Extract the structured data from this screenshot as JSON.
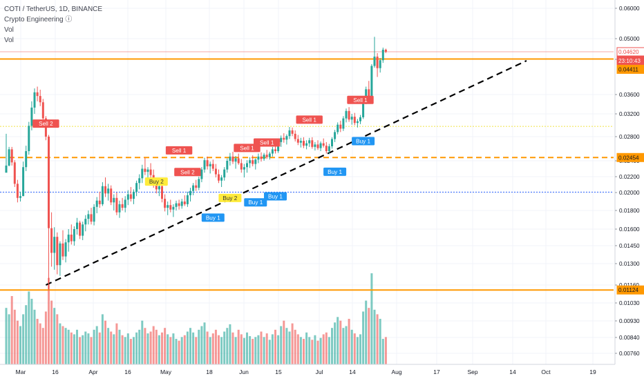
{
  "header": {
    "symbol_line": "COTI / TetherUS, 1D, BINANCE",
    "indicators": [
      "Crypto Engineering ⓘ",
      "Vol",
      "Vol"
    ]
  },
  "colors": {
    "up": "#26a69a",
    "down": "#ef5350",
    "orange": "#ff9800",
    "yellow": "#f0e442",
    "blue": "#2962ff",
    "sell_label": "#ef5350",
    "buy1_label": "#2196f3",
    "buy2_label": "#ffeb3b",
    "trend": "#000000"
  },
  "price_axis": {
    "ticks": [
      "0.06000",
      "0.05000",
      "0.04400",
      "0.03600",
      "0.03200",
      "0.02800",
      "0.02400",
      "0.02200",
      "0.02000",
      "0.01800",
      "0.01600",
      "0.01450",
      "0.01300",
      "0.01160",
      "0.01030",
      "0.00930",
      "0.00840",
      "0.00760"
    ]
  },
  "time_axis": {
    "labels": [
      "Mar",
      "16",
      "Apr",
      "16",
      "May",
      "18",
      "Jun",
      "15",
      "Jul",
      "14",
      "Aug",
      "17",
      "Sep",
      "14",
      "Oct",
      "19"
    ]
  },
  "badges": [
    {
      "text": "0.04620",
      "color": "#ef5350",
      "style": "outline"
    },
    {
      "text": "23:10:43",
      "color": "#ef5350",
      "style": "fill"
    },
    {
      "text": "0.04411",
      "color": "#ff9800",
      "style": "fill"
    },
    {
      "text": "0.02454",
      "color": "#ff9800",
      "style": "fill"
    },
    {
      "text": "0.01124",
      "color": "#ff9800",
      "style": "fill"
    }
  ],
  "chart_data": {
    "type": "candlestick",
    "series_note": "COTI/USDT daily OHLC, Feb 26 – Jul 22 (approx.)",
    "start_date": "2021-02-26",
    "ohlc": [
      [
        0.0225,
        0.0285,
        0.0228,
        0.0234
      ],
      [
        0.0234,
        0.0263,
        0.0233,
        0.0259
      ],
      [
        0.0259,
        0.0263,
        0.0234,
        0.0238
      ],
      [
        0.0238,
        0.0241,
        0.0207,
        0.0211
      ],
      [
        0.0211,
        0.0216,
        0.0189,
        0.0194
      ],
      [
        0.0194,
        0.0201,
        0.019,
        0.0196
      ],
      [
        0.0196,
        0.0239,
        0.0196,
        0.0232
      ],
      [
        0.0232,
        0.0265,
        0.0227,
        0.0256
      ],
      [
        0.0256,
        0.0306,
        0.025,
        0.0299
      ],
      [
        0.0299,
        0.0346,
        0.0291,
        0.0333
      ],
      [
        0.0333,
        0.0374,
        0.032,
        0.0365
      ],
      [
        0.0365,
        0.0378,
        0.0346,
        0.0357
      ],
      [
        0.0357,
        0.0371,
        0.0336,
        0.0344
      ],
      [
        0.0344,
        0.0351,
        0.0305,
        0.0312
      ],
      [
        0.0312,
        0.0316,
        0.0274,
        0.028
      ],
      [
        0.028,
        0.0283,
        0.0112,
        0.0161
      ],
      [
        0.0161,
        0.0178,
        0.0128,
        0.0139
      ],
      [
        0.0139,
        0.0162,
        0.0126,
        0.0153
      ],
      [
        0.0153,
        0.0157,
        0.0123,
        0.0129
      ],
      [
        0.0129,
        0.0149,
        0.0122,
        0.0147
      ],
      [
        0.0147,
        0.0159,
        0.0133,
        0.0136
      ],
      [
        0.0136,
        0.0151,
        0.0131,
        0.0148
      ],
      [
        0.0148,
        0.016,
        0.014,
        0.0155
      ],
      [
        0.0155,
        0.0165,
        0.0146,
        0.0149
      ],
      [
        0.0149,
        0.0163,
        0.0145,
        0.016
      ],
      [
        0.016,
        0.0172,
        0.0155,
        0.0167
      ],
      [
        0.0167,
        0.0169,
        0.0151,
        0.0154
      ],
      [
        0.0154,
        0.0168,
        0.015,
        0.0165
      ],
      [
        0.0165,
        0.0175,
        0.0158,
        0.0171
      ],
      [
        0.0171,
        0.018,
        0.0165,
        0.0176
      ],
      [
        0.0176,
        0.0183,
        0.0165,
        0.0168
      ],
      [
        0.0168,
        0.0187,
        0.0164,
        0.0184
      ],
      [
        0.0184,
        0.0195,
        0.0177,
        0.0191
      ],
      [
        0.0191,
        0.0201,
        0.0183,
        0.0187
      ],
      [
        0.0187,
        0.0213,
        0.0185,
        0.0208
      ],
      [
        0.0208,
        0.0219,
        0.0195,
        0.0199
      ],
      [
        0.0199,
        0.0211,
        0.0191,
        0.0205
      ],
      [
        0.0205,
        0.0209,
        0.0186,
        0.0189
      ],
      [
        0.0189,
        0.0198,
        0.018,
        0.0194
      ],
      [
        0.0194,
        0.02,
        0.0175,
        0.0178
      ],
      [
        0.0178,
        0.0191,
        0.0172,
        0.0187
      ],
      [
        0.0187,
        0.0194,
        0.018,
        0.0183
      ],
      [
        0.0183,
        0.0196,
        0.0178,
        0.0192
      ],
      [
        0.0192,
        0.0203,
        0.0186,
        0.0198
      ],
      [
        0.0198,
        0.0207,
        0.019,
        0.0193
      ],
      [
        0.0193,
        0.0204,
        0.0187,
        0.0201
      ],
      [
        0.0201,
        0.0215,
        0.0196,
        0.0212
      ],
      [
        0.0212,
        0.0223,
        0.0204,
        0.0218
      ],
      [
        0.0218,
        0.0235,
        0.0212,
        0.023
      ],
      [
        0.023,
        0.0245,
        0.0222,
        0.0226
      ],
      [
        0.0226,
        0.0232,
        0.0214,
        0.0229
      ],
      [
        0.0229,
        0.0237,
        0.0218,
        0.0222
      ],
      [
        0.0222,
        0.0229,
        0.0206,
        0.021
      ],
      [
        0.021,
        0.0216,
        0.0199,
        0.0204
      ],
      [
        0.0204,
        0.0212,
        0.0196,
        0.0208
      ],
      [
        0.0208,
        0.0213,
        0.0189,
        0.0193
      ],
      [
        0.0193,
        0.0198,
        0.0179,
        0.0183
      ],
      [
        0.0183,
        0.019,
        0.0175,
        0.0186
      ],
      [
        0.0186,
        0.0192,
        0.0178,
        0.0181
      ],
      [
        0.0181,
        0.0187,
        0.0173,
        0.0184
      ],
      [
        0.0184,
        0.0191,
        0.018,
        0.0188
      ],
      [
        0.0188,
        0.0192,
        0.0181,
        0.0185
      ],
      [
        0.0185,
        0.0193,
        0.0182,
        0.019
      ],
      [
        0.019,
        0.0197,
        0.0185,
        0.0187
      ],
      [
        0.0187,
        0.0201,
        0.0184,
        0.0197
      ],
      [
        0.0197,
        0.0206,
        0.019,
        0.0202
      ],
      [
        0.0202,
        0.0212,
        0.0197,
        0.0209
      ],
      [
        0.0209,
        0.0216,
        0.0202,
        0.0206
      ],
      [
        0.0206,
        0.022,
        0.0203,
        0.0217
      ],
      [
        0.0217,
        0.0232,
        0.0213,
        0.0229
      ],
      [
        0.0229,
        0.0245,
        0.0225,
        0.0241
      ],
      [
        0.0241,
        0.0247,
        0.0229,
        0.0233
      ],
      [
        0.0233,
        0.0239,
        0.0224,
        0.0236
      ],
      [
        0.0236,
        0.0242,
        0.0227,
        0.023
      ],
      [
        0.023,
        0.0236,
        0.0219,
        0.0223
      ],
      [
        0.0223,
        0.0229,
        0.0212,
        0.0215
      ],
      [
        0.0215,
        0.0222,
        0.0207,
        0.0219
      ],
      [
        0.0219,
        0.0232,
        0.0215,
        0.0229
      ],
      [
        0.0229,
        0.0244,
        0.0225,
        0.024
      ],
      [
        0.024,
        0.0253,
        0.0234,
        0.0247
      ],
      [
        0.0247,
        0.0255,
        0.0236,
        0.0239
      ],
      [
        0.0239,
        0.0248,
        0.023,
        0.0244
      ],
      [
        0.0244,
        0.0252,
        0.0235,
        0.0237
      ],
      [
        0.0237,
        0.0243,
        0.0225,
        0.0229
      ],
      [
        0.0229,
        0.0236,
        0.0219,
        0.0232
      ],
      [
        0.0232,
        0.0241,
        0.0225,
        0.0237
      ],
      [
        0.0237,
        0.0246,
        0.0231,
        0.0241
      ],
      [
        0.0241,
        0.0249,
        0.0233,
        0.0236
      ],
      [
        0.0236,
        0.0244,
        0.0229,
        0.0242
      ],
      [
        0.0242,
        0.0252,
        0.0237,
        0.0247
      ],
      [
        0.0247,
        0.0254,
        0.0239,
        0.0243
      ],
      [
        0.0243,
        0.0253,
        0.024,
        0.025
      ],
      [
        0.025,
        0.0258,
        0.0243,
        0.0246
      ],
      [
        0.0246,
        0.0255,
        0.0242,
        0.0252
      ],
      [
        0.0252,
        0.0263,
        0.0247,
        0.0259
      ],
      [
        0.0259,
        0.0268,
        0.0252,
        0.0256
      ],
      [
        0.0256,
        0.0274,
        0.0253,
        0.0271
      ],
      [
        0.0271,
        0.0282,
        0.0263,
        0.0278
      ],
      [
        0.0278,
        0.0286,
        0.027,
        0.0275
      ],
      [
        0.0275,
        0.0284,
        0.0267,
        0.0281
      ],
      [
        0.0281,
        0.0297,
        0.0276,
        0.0291
      ],
      [
        0.0291,
        0.0296,
        0.0281,
        0.0285
      ],
      [
        0.0285,
        0.0291,
        0.0272,
        0.0276
      ],
      [
        0.0276,
        0.0283,
        0.0266,
        0.027
      ],
      [
        0.027,
        0.0278,
        0.0262,
        0.0273
      ],
      [
        0.0273,
        0.0279,
        0.0261,
        0.0265
      ],
      [
        0.0265,
        0.0274,
        0.0259,
        0.0269
      ],
      [
        0.0269,
        0.0278,
        0.0263,
        0.0274
      ],
      [
        0.0274,
        0.0279,
        0.026,
        0.0263
      ],
      [
        0.0263,
        0.0271,
        0.0257,
        0.0267
      ],
      [
        0.0267,
        0.0274,
        0.0258,
        0.0261
      ],
      [
        0.0261,
        0.0272,
        0.0256,
        0.0269
      ],
      [
        0.0269,
        0.0277,
        0.0262,
        0.0265
      ],
      [
        0.0265,
        0.0271,
        0.0252,
        0.0256
      ],
      [
        0.0256,
        0.0268,
        0.0251,
        0.0264
      ],
      [
        0.0264,
        0.0279,
        0.026,
        0.0276
      ],
      [
        0.0276,
        0.0292,
        0.0271,
        0.0288
      ],
      [
        0.0288,
        0.0305,
        0.0284,
        0.0301
      ],
      [
        0.0301,
        0.0308,
        0.0288,
        0.0294
      ],
      [
        0.0294,
        0.0316,
        0.029,
        0.0312
      ],
      [
        0.0312,
        0.0331,
        0.0305,
        0.0326
      ],
      [
        0.0326,
        0.0334,
        0.0306,
        0.031
      ],
      [
        0.031,
        0.032,
        0.0301,
        0.0315
      ],
      [
        0.0315,
        0.0322,
        0.03,
        0.0304
      ],
      [
        0.0304,
        0.0311,
        0.0296,
        0.0307
      ],
      [
        0.0307,
        0.0318,
        0.0302,
        0.0314
      ],
      [
        0.0314,
        0.0352,
        0.0311,
        0.0348
      ],
      [
        0.0348,
        0.0378,
        0.034,
        0.0372
      ],
      [
        0.0372,
        0.0391,
        0.0348,
        0.0354
      ],
      [
        0.0354,
        0.0429,
        0.035,
        0.0425
      ],
      [
        0.0425,
        0.0506,
        0.0421,
        0.0448
      ],
      [
        0.0448,
        0.0458,
        0.04,
        0.042
      ],
      [
        0.042,
        0.0444,
        0.041,
        0.0438
      ],
      [
        0.0438,
        0.0474,
        0.0432,
        0.0468
      ],
      [
        0.0468,
        0.0471,
        0.0458,
        0.0462
      ]
    ],
    "volume_relative": [
      0.62,
      0.55,
      0.75,
      0.6,
      0.48,
      0.42,
      0.55,
      0.65,
      0.8,
      0.72,
      0.6,
      0.5,
      0.45,
      0.4,
      0.58,
      0.95,
      0.7,
      0.62,
      0.55,
      0.45,
      0.42,
      0.4,
      0.38,
      0.35,
      0.33,
      0.38,
      0.3,
      0.32,
      0.36,
      0.34,
      0.3,
      0.38,
      0.42,
      0.35,
      0.55,
      0.48,
      0.4,
      0.36,
      0.33,
      0.45,
      0.38,
      0.32,
      0.3,
      0.34,
      0.28,
      0.3,
      0.35,
      0.38,
      0.48,
      0.4,
      0.34,
      0.36,
      0.42,
      0.38,
      0.32,
      0.35,
      0.4,
      0.33,
      0.3,
      0.34,
      0.28,
      0.26,
      0.3,
      0.32,
      0.36,
      0.4,
      0.35,
      0.3,
      0.38,
      0.42,
      0.46,
      0.36,
      0.3,
      0.34,
      0.38,
      0.32,
      0.3,
      0.36,
      0.4,
      0.44,
      0.35,
      0.3,
      0.38,
      0.33,
      0.29,
      0.35,
      0.31,
      0.28,
      0.3,
      0.32,
      0.36,
      0.3,
      0.34,
      0.27,
      0.33,
      0.38,
      0.32,
      0.42,
      0.48,
      0.4,
      0.36,
      0.45,
      0.38,
      0.33,
      0.3,
      0.28,
      0.35,
      0.3,
      0.27,
      0.32,
      0.26,
      0.29,
      0.33,
      0.35,
      0.3,
      0.4,
      0.46,
      0.52,
      0.48,
      0.4,
      0.42,
      0.5,
      0.38,
      0.34,
      0.3,
      0.33,
      0.58,
      0.7,
      0.62,
      1.0,
      0.6,
      0.55,
      0.5,
      0.28
    ],
    "horizontal_levels": [
      {
        "price": 0.04411,
        "color": "#ff9800",
        "style": "solid",
        "width": 2
      },
      {
        "price": 0.02454,
        "color": "#ff9800",
        "style": "dashed",
        "width": 2
      },
      {
        "price": 0.01124,
        "color": "#ff9800",
        "style": "solid",
        "width": 2
      },
      {
        "price": 0.0298,
        "color": "#f0e442",
        "style": "dotted",
        "width": 1
      },
      {
        "price": 0.02005,
        "color": "#2962ff",
        "style": "dotted",
        "width": 1
      },
      {
        "price": 0.0462,
        "color": "#ef5350",
        "style": "solid",
        "width": 0.6
      }
    ],
    "trendline": {
      "from": [
        14,
        0.0116
      ],
      "to": [
        178,
        0.0436
      ],
      "color": "#000000",
      "style": "dashed"
    },
    "signals": [
      {
        "text": "Sell 2",
        "index": 14,
        "price": 0.0292,
        "kind": "sell",
        "side": "above"
      },
      {
        "text": "Buy 2",
        "index": 53,
        "price": 0.0206,
        "kind": "buy2",
        "side": "above"
      },
      {
        "text": "Sell 1",
        "index": 61,
        "price": 0.0247,
        "kind": "sell",
        "side": "above"
      },
      {
        "text": "Sell 2",
        "index": 64,
        "price": 0.0218,
        "kind": "sell",
        "side": "above"
      },
      {
        "text": "Buy 2",
        "index": 79,
        "price": 0.0187,
        "kind": "buy2",
        "side": "above"
      },
      {
        "text": "Buy 1",
        "index": 73,
        "price": 0.0179,
        "kind": "buy1",
        "side": "below"
      },
      {
        "text": "Sell 1",
        "index": 85,
        "price": 0.0251,
        "kind": "sell",
        "side": "above"
      },
      {
        "text": "Sell 1",
        "index": 92,
        "price": 0.026,
        "kind": "sell",
        "side": "above"
      },
      {
        "text": "Buy 1",
        "index": 88,
        "price": 0.0196,
        "kind": "buy1",
        "side": "below"
      },
      {
        "text": "Buy 1",
        "index": 95,
        "price": 0.0203,
        "kind": "buy1",
        "side": "below"
      },
      {
        "text": "Sell 1",
        "index": 107,
        "price": 0.0299,
        "kind": "sell",
        "side": "above"
      },
      {
        "text": "Buy 1",
        "index": 116,
        "price": 0.0234,
        "kind": "buy1",
        "side": "below"
      },
      {
        "text": "Sell 1",
        "index": 125,
        "price": 0.0336,
        "kind": "sell",
        "side": "above"
      },
      {
        "text": "Buy 1",
        "index": 126,
        "price": 0.0283,
        "kind": "buy1",
        "side": "below"
      }
    ]
  }
}
